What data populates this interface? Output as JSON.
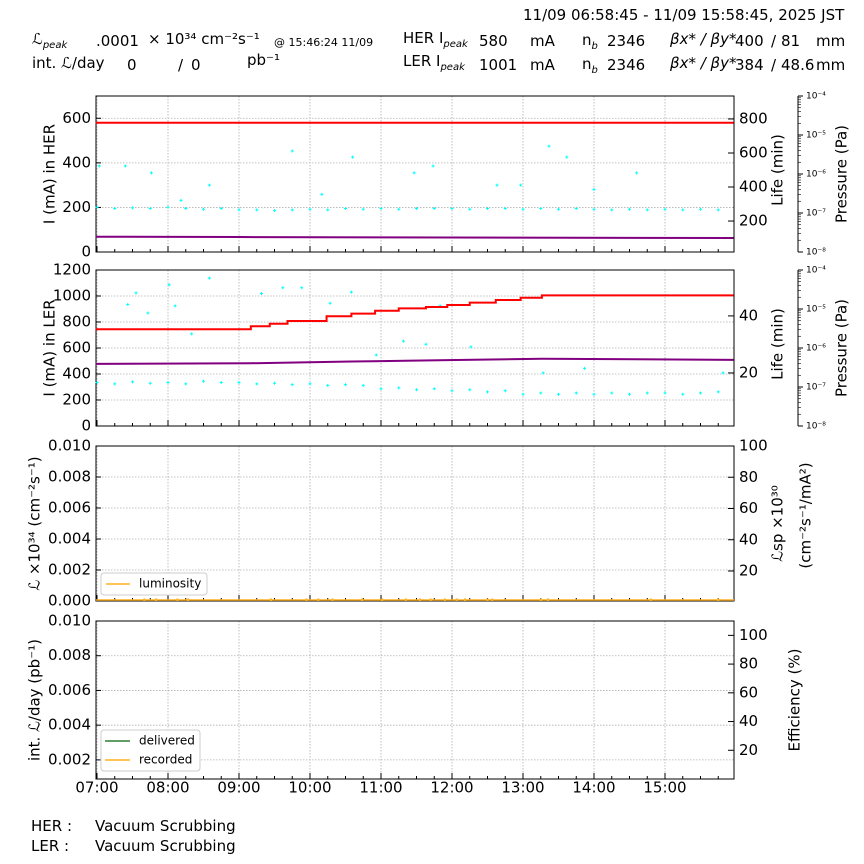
{
  "header": {
    "time_range": "11/09 06:58:45 - 11/09 15:58:45, 2025 JST",
    "lpeak_label": "ℒ",
    "lpeak_sub": "peak",
    "lpeak_value": ".0001",
    "lpeak_unit": "× 10³⁴ cm⁻²s⁻¹",
    "lpeak_time": "@ 15:46:24 11/09",
    "intl_label": "int. ℒ/day",
    "intl_delivered": "0",
    "intl_sep": "/",
    "intl_recorded": "0",
    "intl_unit": "pb⁻¹",
    "her": {
      "label": "HER I",
      "sub": "peak",
      "current": "580",
      "current_unit": "mA",
      "nb_label": "n",
      "nb_sub": "b",
      "nb": "2346",
      "beta_label": "βx* / βy*",
      "beta": "400",
      "beta_sep": "/",
      "beta_y": "81",
      "beta_unit": "mm"
    },
    "ler": {
      "label": "LER I",
      "sub": "peak",
      "current": "1001",
      "current_unit": "mA",
      "nb_label": "n",
      "nb_sub": "b",
      "nb": "2346",
      "beta_label": "βx* / βy*",
      "beta": "384",
      "beta_sep": "/",
      "beta_y": "48.6",
      "beta_unit": "mm"
    }
  },
  "footer": {
    "her_label": "HER :",
    "her_status": "Vacuum Scrubbing",
    "ler_label": "LER :",
    "ler_status": "Vacuum Scrubbing"
  },
  "colors": {
    "current": "#ff0000",
    "life": "#800080",
    "pressure": "#00ffff",
    "luminosity": "#ffb020",
    "delivered": "#2e7d32",
    "recorded": "#ffb020",
    "grid": "#b0b0b0"
  },
  "chart_data": [
    {
      "type": "line",
      "panel": "her",
      "ylabel": "I (mA) in HER",
      "y2label": "Life (min)",
      "y3label": "Pressure (Pa)",
      "xlim": [
        "06:58:45",
        "15:58:45"
      ],
      "ylim": [
        0,
        700
      ],
      "y2lim": [
        18,
        935
      ],
      "y3lim": [
        1e-08,
        0.0001
      ],
      "y3scale": "log",
      "grid": true,
      "xticks": [
        "07:00",
        "08:00",
        "09:00",
        "10:00",
        "11:00",
        "12:00",
        "13:00",
        "14:00",
        "15:00"
      ],
      "yticks": [
        0,
        200,
        400,
        600
      ],
      "y2ticks": [
        200,
        400,
        600,
        800
      ],
      "y3ticks": [
        "10⁻⁸",
        "10⁻⁷",
        "10⁻⁶",
        "10⁻⁵",
        "10⁻⁴"
      ],
      "current": [
        [
          "06:59",
          580
        ],
        [
          "15:58",
          580
        ]
      ],
      "life": [
        [
          "06:59",
          108
        ],
        [
          "09:00",
          106
        ],
        [
          "12:00",
          103
        ],
        [
          "15:58",
          100
        ]
      ],
      "pressure": [
        [
          "07:00",
          1.4e-07
        ],
        [
          "07:15",
          1.3e-07
        ],
        [
          "07:30",
          1.35e-07
        ],
        [
          "07:45",
          1.3e-07
        ],
        [
          "08:00",
          1.4e-07
        ],
        [
          "08:15",
          1.3e-07
        ],
        [
          "08:30",
          1.25e-07
        ],
        [
          "08:45",
          1.3e-07
        ],
        [
          "09:00",
          1.2e-07
        ],
        [
          "09:15",
          1.2e-07
        ],
        [
          "09:30",
          1.15e-07
        ],
        [
          "09:45",
          1.2e-07
        ],
        [
          "10:00",
          1.25e-07
        ],
        [
          "10:15",
          1.2e-07
        ],
        [
          "10:30",
          1.3e-07
        ],
        [
          "10:45",
          1.25e-07
        ],
        [
          "11:00",
          1.3e-07
        ],
        [
          "11:15",
          1.25e-07
        ],
        [
          "11:30",
          1.3e-07
        ],
        [
          "11:45",
          1.3e-07
        ],
        [
          "12:00",
          1.3e-07
        ],
        [
          "12:15",
          1.25e-07
        ],
        [
          "12:30",
          1.3e-07
        ],
        [
          "12:45",
          1.3e-07
        ],
        [
          "13:00",
          1.25e-07
        ],
        [
          "13:15",
          1.3e-07
        ],
        [
          "13:30",
          1.25e-07
        ],
        [
          "13:45",
          1.3e-07
        ],
        [
          "14:00",
          1.25e-07
        ],
        [
          "14:15",
          1.2e-07
        ],
        [
          "14:30",
          1.25e-07
        ],
        [
          "14:45",
          1.2e-07
        ],
        [
          "15:00",
          1.25e-07
        ],
        [
          "15:15",
          1.2e-07
        ],
        [
          "15:30",
          1.25e-07
        ],
        [
          "15:45",
          1.2e-07
        ],
        [
          "07:24",
          1.6e-06
        ],
        [
          "07:46",
          1.07e-06
        ],
        [
          "08:11",
          2.1e-07
        ],
        [
          "09:45",
          3.9e-06
        ],
        [
          "10:36",
          2.7e-06
        ],
        [
          "11:28",
          1.07e-06
        ],
        [
          "11:44",
          1.6e-06
        ],
        [
          "12:38",
          5.2e-07
        ],
        [
          "12:58",
          5.2e-07
        ],
        [
          "13:22",
          5.2e-06
        ],
        [
          "13:37",
          2.7e-06
        ],
        [
          "14:36",
          1.07e-06
        ],
        [
          "07:02",
          1.6e-06
        ],
        [
          "08:35",
          5.2e-07
        ],
        [
          "10:10",
          3e-07
        ],
        [
          "14:00",
          4e-07
        ]
      ]
    },
    {
      "type": "line",
      "panel": "ler",
      "ylabel": "I (mA) in LER",
      "y2label": "Life (min)",
      "y3label": "Pressure (Pa)",
      "xlim": [
        "06:58:45",
        "15:58:45"
      ],
      "ylim": [
        0,
        1200
      ],
      "y2lim": [
        1.4,
        56.1
      ],
      "y3lim": [
        1e-08,
        0.0001
      ],
      "y3scale": "log",
      "grid": true,
      "yticks": [
        0,
        200,
        400,
        600,
        800,
        1000,
        1200
      ],
      "y2ticks": [
        20,
        40
      ],
      "y3ticks": [
        "10⁻⁸",
        "10⁻⁷",
        "10⁻⁶",
        "10⁻⁵",
        "10⁻⁴"
      ],
      "current": [
        [
          "06:59",
          744
        ],
        [
          "09:10",
          744
        ],
        [
          "09:10",
          767
        ],
        [
          "09:26",
          767
        ],
        [
          "09:26",
          787
        ],
        [
          "09:41",
          787
        ],
        [
          "09:41",
          808
        ],
        [
          "10:14",
          808
        ],
        [
          "10:14",
          844
        ],
        [
          "10:35",
          844
        ],
        [
          "10:35",
          864
        ],
        [
          "10:55",
          864
        ],
        [
          "10:55",
          887
        ],
        [
          "11:15",
          887
        ],
        [
          "11:15",
          905
        ],
        [
          "11:38",
          905
        ],
        [
          "11:38",
          915
        ],
        [
          "11:56",
          915
        ],
        [
          "11:56",
          931
        ],
        [
          "12:15",
          931
        ],
        [
          "12:15",
          949
        ],
        [
          "12:37",
          949
        ],
        [
          "12:37",
          969
        ],
        [
          "12:58",
          969
        ],
        [
          "12:58",
          987
        ],
        [
          "13:16",
          987
        ],
        [
          "13:16",
          1005
        ],
        [
          "15:58",
          1005
        ]
      ],
      "life": [
        [
          "06:59",
          23.2
        ],
        [
          "09:10",
          23.4
        ],
        [
          "10:35",
          24.0
        ],
        [
          "11:56",
          24.5
        ],
        [
          "13:16",
          25.0
        ],
        [
          "15:58",
          24.6
        ]
      ],
      "pressure": [
        [
          "07:00",
          1.3e-07
        ],
        [
          "07:15",
          1.2e-07
        ],
        [
          "07:30",
          1.35e-07
        ],
        [
          "07:45",
          1.25e-07
        ],
        [
          "08:00",
          1.3e-07
        ],
        [
          "08:15",
          1.2e-07
        ],
        [
          "08:30",
          1.4e-07
        ],
        [
          "08:45",
          1.3e-07
        ],
        [
          "09:00",
          1.3e-07
        ],
        [
          "09:15",
          1.2e-07
        ],
        [
          "09:30",
          1.25e-07
        ],
        [
          "09:45",
          1.15e-07
        ],
        [
          "10:00",
          1.2e-07
        ],
        [
          "10:15",
          1.1e-07
        ],
        [
          "10:30",
          1.15e-07
        ],
        [
          "10:45",
          1.1e-07
        ],
        [
          "11:00",
          9e-08
        ],
        [
          "11:15",
          9.5e-08
        ],
        [
          "11:30",
          8.5e-08
        ],
        [
          "11:45",
          9e-08
        ],
        [
          "12:00",
          8e-08
        ],
        [
          "12:15",
          8.5e-08
        ],
        [
          "12:30",
          7.5e-08
        ],
        [
          "12:45",
          8e-08
        ],
        [
          "13:00",
          6.5e-08
        ],
        [
          "13:15",
          7e-08
        ],
        [
          "13:30",
          6.5e-08
        ],
        [
          "13:45",
          7e-08
        ],
        [
          "14:00",
          6.5e-08
        ],
        [
          "14:15",
          7e-08
        ],
        [
          "14:30",
          6.5e-08
        ],
        [
          "14:45",
          7e-08
        ],
        [
          "15:00",
          7e-08
        ],
        [
          "15:15",
          6.5e-08
        ],
        [
          "15:30",
          7e-08
        ],
        [
          "15:45",
          7.5e-08
        ],
        [
          "08:35",
          6.2e-05
        ],
        [
          "08:01",
          4.2e-05
        ],
        [
          "07:33",
          2.6e-05
        ],
        [
          "09:37",
          3.5e-05
        ],
        [
          "09:53",
          3.5e-05
        ],
        [
          "10:35",
          2.7e-05
        ],
        [
          "09:19",
          2.5e-05
        ],
        [
          "07:26",
          1.3e-05
        ],
        [
          "08:06",
          1.2e-05
        ],
        [
          "07:43",
          7.9e-06
        ],
        [
          "10:17",
          1.4e-05
        ],
        [
          "11:50",
          1.2e-05
        ],
        [
          "08:20",
          2.3e-06
        ],
        [
          "11:19",
          1.5e-06
        ],
        [
          "11:38",
          1.25e-06
        ],
        [
          "12:16",
          1.07e-06
        ],
        [
          "10:56",
          6.6e-07
        ],
        [
          "13:17",
          2.3e-07
        ],
        [
          "13:52",
          3e-07
        ],
        [
          "15:49",
          2.3e-07
        ]
      ]
    },
    {
      "type": "line",
      "panel": "luminosity",
      "ylabel": "ℒ ×10³⁴ (cm⁻²s⁻¹)",
      "y2label": "ℒsp ×10³⁰",
      "y2label2": "(cm⁻²s⁻¹/mA²)",
      "xlim": [
        "06:58:45",
        "15:58:45"
      ],
      "ylim": [
        0,
        0.01
      ],
      "y2lim": [
        0.8,
        100
      ],
      "grid": true,
      "yticks": [
        "0.000",
        "0.002",
        "0.004",
        "0.006",
        "0.008",
        "0.010"
      ],
      "y2ticks": [
        20,
        40,
        60,
        80,
        100
      ],
      "legend": {
        "location": "lower-left",
        "entries": [
          "luminosity"
        ]
      },
      "series": [
        {
          "name": "luminosity",
          "points": [
            [
              "07:40",
              0.0001
            ],
            [
              "07:50",
              0.0001
            ],
            [
              "08:08",
              0.0001
            ],
            [
              "08:17",
              0.0001
            ],
            [
              "09:27",
              0.0001
            ],
            [
              "09:57",
              0.0001
            ],
            [
              "10:07",
              0.0001
            ],
            [
              "10:19",
              0.0001
            ],
            [
              "10:44",
              0.0001
            ],
            [
              "11:01",
              0.0001
            ],
            [
              "11:21",
              0.0001
            ],
            [
              "11:33",
              0.0001
            ],
            [
              "11:42",
              0.0001
            ],
            [
              "11:54",
              0.0001
            ],
            [
              "12:04",
              0.0001
            ],
            [
              "12:11",
              0.0001
            ],
            [
              "12:30",
              0.0001
            ],
            [
              "12:34",
              0.0001
            ],
            [
              "13:15",
              0.0001
            ],
            [
              "13:21",
              0.0001
            ],
            [
              "14:48",
              0.0001
            ],
            [
              "15:45",
              0.0001
            ]
          ]
        }
      ]
    },
    {
      "type": "line",
      "panel": "integrated",
      "ylabel": "int. ℒ/day (pb⁻¹)",
      "y2label": "Efficiency (%)",
      "xlim": [
        "06:58:45",
        "15:58:45"
      ],
      "ylim": [
        0.0009,
        0.01
      ],
      "y2lim": [
        0,
        110
      ],
      "grid": true,
      "yticks": [
        "0.002",
        "0.004",
        "0.006",
        "0.008",
        "0.010"
      ],
      "y2ticks": [
        20,
        40,
        60,
        80,
        100
      ],
      "legend": {
        "location": "lower-left",
        "entries": [
          "delivered",
          "recorded"
        ]
      },
      "series": [
        {
          "name": "delivered",
          "points": []
        },
        {
          "name": "recorded",
          "points": []
        }
      ]
    }
  ]
}
